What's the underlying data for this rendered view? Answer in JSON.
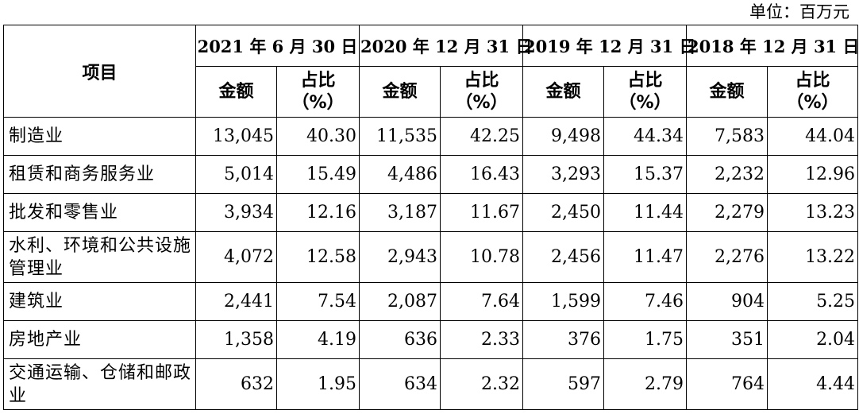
{
  "unit_label": "单位：百万元",
  "header": {
    "item_label": "项目",
    "dates": [
      "2021 年 6 月 30 日",
      "2020 年 12 月 31 日",
      "2019 年 12 月 31 日",
      "2018 年 12 月 31 日"
    ],
    "amount_label": "金额",
    "ratio_label_line1": "占比",
    "ratio_label_line2": "（%）"
  },
  "rows": [
    {
      "name": "制造业",
      "values": [
        "13,045",
        "40.30",
        "11,535",
        "42.25",
        "9,498",
        "44.34",
        "7,583",
        "44.04"
      ]
    },
    {
      "name": "租赁和商务服务业",
      "values": [
        "5,014",
        "15.49",
        "4,486",
        "16.43",
        "3,293",
        "15.37",
        "2,232",
        "12.96"
      ]
    },
    {
      "name": "批发和零售业",
      "values": [
        "3,934",
        "12.16",
        "3,187",
        "11.67",
        "2,450",
        "11.44",
        "2,279",
        "13.23"
      ]
    },
    {
      "name": "水利、环境和公共设施管理业",
      "values": [
        "4,072",
        "12.58",
        "2,943",
        "10.78",
        "2,456",
        "11.47",
        "2,276",
        "13.22"
      ]
    },
    {
      "name": "建筑业",
      "values": [
        "2,441",
        "7.54",
        "2,087",
        "7.64",
        "1,599",
        "7.46",
        "904",
        "5.25"
      ]
    },
    {
      "name": "房地产业",
      "values": [
        "1,358",
        "4.19",
        "636",
        "2.33",
        "376",
        "1.75",
        "351",
        "2.04"
      ]
    },
    {
      "name": "交通运输、仓储和邮政业",
      "values": [
        "632",
        "1.95",
        "634",
        "2.32",
        "597",
        "2.79",
        "764",
        "4.44"
      ]
    }
  ]
}
